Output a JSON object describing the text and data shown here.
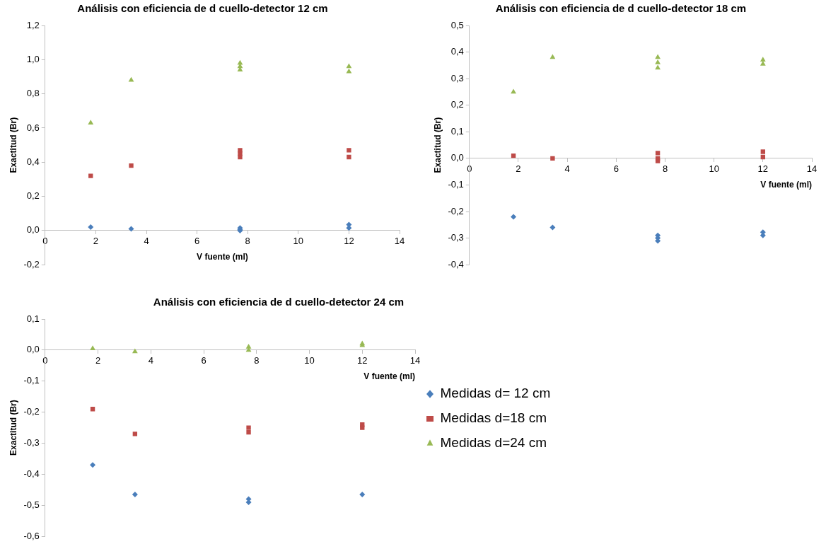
{
  "chart_data": [
    {
      "type": "scatter",
      "title": "Análisis con eficiencia de d cuello-detector 12 cm",
      "xlabel": "V fuente (ml)",
      "ylabel": "Exactitud (Br)",
      "xlim": [
        0,
        14
      ],
      "xticks": [
        0,
        2,
        4,
        6,
        8,
        10,
        12,
        14
      ],
      "ylim": [
        -0.2,
        1.2
      ],
      "yticks": [
        {
          "value": -0.2,
          "label": "-0,2"
        },
        {
          "value": 0,
          "label": "0,0"
        },
        {
          "value": 0.2,
          "label": "0,2"
        },
        {
          "value": 0.4,
          "label": "0,4"
        },
        {
          "value": 0.6,
          "label": "0,6"
        },
        {
          "value": 0.8,
          "label": "0,8"
        },
        {
          "value": 1.0,
          "label": "1,0"
        },
        {
          "value": 1.2,
          "label": "1,2"
        }
      ],
      "grid": false,
      "legend": false,
      "series": [
        {
          "color": "#4a7ebb",
          "marker": "diamond",
          "x": [
            1.8,
            3.4,
            7.7,
            7.7,
            7.7,
            12,
            12
          ],
          "values": [
            0.02,
            0.01,
            0.0,
            0.015,
            0.005,
            0.015,
            0.035
          ]
        },
        {
          "color": "#be4b48",
          "marker": "square",
          "x": [
            1.8,
            3.4,
            7.7,
            7.7,
            7.7,
            12,
            12
          ],
          "values": [
            0.32,
            0.38,
            0.43,
            0.45,
            0.47,
            0.47,
            0.43
          ]
        },
        {
          "color": "#98b954",
          "marker": "triangle",
          "x": [
            1.8,
            3.4,
            7.7,
            7.7,
            7.7,
            12,
            12
          ],
          "values": [
            0.63,
            0.88,
            0.94,
            0.96,
            0.98,
            0.96,
            0.93
          ]
        }
      ]
    },
    {
      "type": "scatter",
      "title": "Análisis con eficiencia de d cuello-detector 18 cm",
      "xlabel": "V fuente (ml)",
      "ylabel": "Exactitud (Br)",
      "xlim": [
        0,
        14
      ],
      "xticks": [
        0,
        2,
        4,
        6,
        8,
        10,
        12,
        14
      ],
      "ylim": [
        -0.4,
        0.5
      ],
      "yticks": [
        {
          "value": -0.4,
          "label": "-0,4"
        },
        {
          "value": -0.3,
          "label": "-0,3"
        },
        {
          "value": -0.2,
          "label": "-0,2"
        },
        {
          "value": -0.1,
          "label": "-0,1"
        },
        {
          "value": 0,
          "label": "0,0"
        },
        {
          "value": 0.1,
          "label": "0,1"
        },
        {
          "value": 0.2,
          "label": "0,2"
        },
        {
          "value": 0.3,
          "label": "0,3"
        },
        {
          "value": 0.4,
          "label": "0,4"
        },
        {
          "value": 0.5,
          "label": "0,5"
        }
      ],
      "grid": false,
      "legend": false,
      "series": [
        {
          "color": "#4a7ebb",
          "marker": "diamond",
          "x": [
            1.8,
            3.4,
            7.7,
            7.7,
            7.7,
            12,
            12
          ],
          "values": [
            -0.22,
            -0.26,
            -0.29,
            -0.3,
            -0.31,
            -0.278,
            -0.29
          ]
        },
        {
          "color": "#be4b48",
          "marker": "square",
          "x": [
            1.8,
            3.4,
            7.7,
            7.7,
            7.7,
            12,
            12
          ],
          "values": [
            0.01,
            0.0,
            -0.01,
            0.0,
            0.02,
            0.025,
            0.005
          ]
        },
        {
          "color": "#98b954",
          "marker": "triangle",
          "x": [
            1.8,
            3.4,
            7.7,
            7.7,
            7.7,
            12,
            12
          ],
          "values": [
            0.25,
            0.38,
            0.34,
            0.36,
            0.38,
            0.37,
            0.355
          ]
        }
      ]
    },
    {
      "type": "scatter",
      "title": "Análisis con eficiencia de d cuello-detector 24 cm",
      "xlabel": "V fuente (ml)",
      "ylabel": "Exactitud (Br)",
      "xlim": [
        0,
        14
      ],
      "xticks": [
        0,
        2,
        4,
        6,
        8,
        10,
        12,
        14
      ],
      "ylim": [
        -0.6,
        0.1
      ],
      "yticks": [
        {
          "value": -0.6,
          "label": "-0,6"
        },
        {
          "value": -0.5,
          "label": "-0,5"
        },
        {
          "value": -0.4,
          "label": "-0,4"
        },
        {
          "value": -0.3,
          "label": "-0,3"
        },
        {
          "value": -0.2,
          "label": "-0,2"
        },
        {
          "value": -0.1,
          "label": "-0,1"
        },
        {
          "value": 0,
          "label": "0,0"
        },
        {
          "value": 0.1,
          "label": "0,1"
        }
      ],
      "grid": false,
      "legend": "right",
      "series": [
        {
          "name": "Medidas d= 12 cm",
          "color": "#4a7ebb",
          "marker": "diamond",
          "x": [
            1.8,
            3.4,
            7.7,
            7.7,
            12
          ],
          "values": [
            -0.37,
            -0.465,
            -0.48,
            -0.49,
            -0.465
          ]
        },
        {
          "name": "Medidas d=18 cm",
          "color": "#be4b48",
          "marker": "square",
          "x": [
            1.8,
            3.4,
            7.7,
            7.7,
            12,
            12
          ],
          "values": [
            -0.19,
            -0.27,
            -0.25,
            -0.265,
            -0.24,
            -0.25
          ]
        },
        {
          "name": "Medidas d=24 cm",
          "color": "#98b954",
          "marker": "triangle",
          "x": [
            1.8,
            3.4,
            7.7,
            7.7,
            12,
            12
          ],
          "values": [
            0.005,
            -0.005,
            0.0,
            0.01,
            0.015,
            0.02
          ]
        }
      ]
    }
  ]
}
